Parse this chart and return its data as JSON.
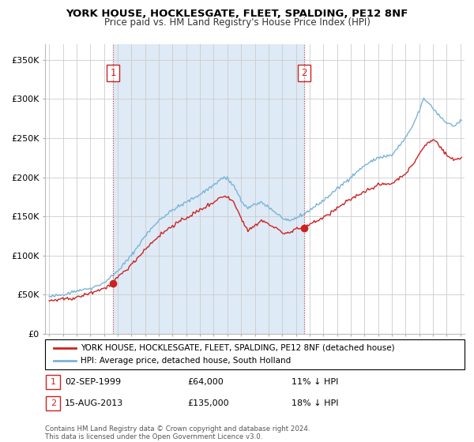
{
  "title": "YORK HOUSE, HOCKLESGATE, FLEET, SPALDING, PE12 8NF",
  "subtitle": "Price paid vs. HM Land Registry's House Price Index (HPI)",
  "legend_line1": "YORK HOUSE, HOCKLESGATE, FLEET, SPALDING, PE12 8NF (detached house)",
  "legend_line2": "HPI: Average price, detached house, South Holland",
  "annotation1_label": "1",
  "annotation1_date": "02-SEP-1999",
  "annotation1_price": "£64,000",
  "annotation1_hpi": "11% ↓ HPI",
  "annotation1_year": 1999.67,
  "annotation1_value": 64000,
  "annotation2_label": "2",
  "annotation2_date": "15-AUG-2013",
  "annotation2_price": "£135,000",
  "annotation2_hpi": "18% ↓ HPI",
  "annotation2_year": 2013.62,
  "annotation2_value": 135000,
  "footer": "Contains HM Land Registry data © Crown copyright and database right 2024.\nThis data is licensed under the Open Government Licence v3.0.",
  "hpi_color": "#7ab3d9",
  "price_color": "#cc2222",
  "vline_color": "#cc2222",
  "shade_color": "#deeaf5",
  "background_color": "#ffffff",
  "plot_bg_color": "#ffffff",
  "grid_color": "#cccccc",
  "ylim": [
    0,
    370000
  ],
  "yticks": [
    0,
    50000,
    100000,
    150000,
    200000,
    250000,
    300000,
    350000
  ],
  "ytick_labels": [
    "£0",
    "£50K",
    "£100K",
    "£150K",
    "£200K",
    "£250K",
    "£300K",
    "£350K"
  ],
  "xlim_start": 1994.7,
  "xlim_end": 2025.3
}
